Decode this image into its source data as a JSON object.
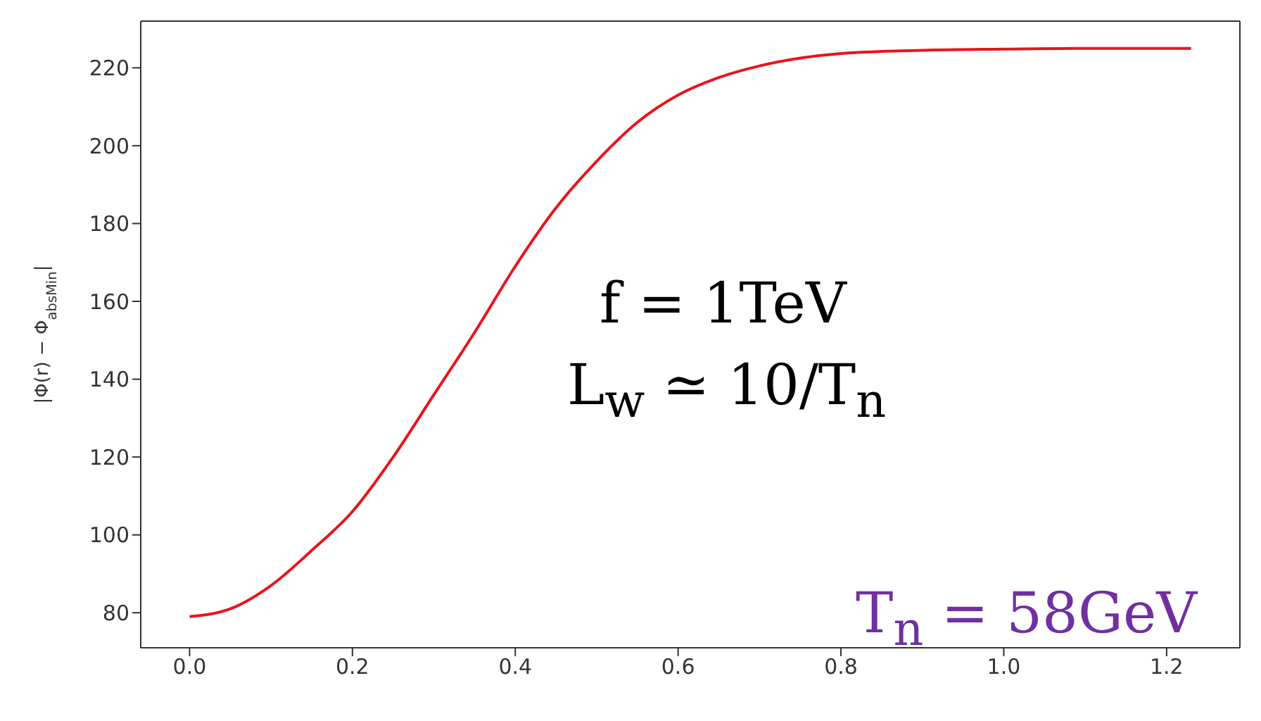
{
  "chart_data": {
    "type": "line",
    "ylabel": "|Φ(r) − Φ$_{absMin}$|",
    "x": [
      0,
      0.05,
      0.1,
      0.15,
      0.2,
      0.25,
      0.3,
      0.35,
      0.4,
      0.45,
      0.5,
      0.55,
      0.6,
      0.65,
      0.7,
      0.75,
      0.8,
      0.9,
      1.0,
      1.1,
      1.23
    ],
    "series": [
      {
        "color": "#e8141b",
        "values": [
          79,
          81,
          87,
          96,
          106,
          120,
          136,
          152,
          169,
          184,
          196,
          206,
          213,
          217.5,
          220.5,
          222.5,
          223.7,
          224.5,
          224.8,
          225,
          225
        ]
      }
    ],
    "xlim": [
      -0.06,
      1.29
    ],
    "xticks": [
      {
        "value": 0,
        "label": "0.0"
      },
      0.2,
      0.4,
      0.6,
      0.8,
      {
        "value": 1,
        "label": "1.0"
      },
      1.2
    ],
    "ylim": [
      71,
      232
    ],
    "yticks": [
      80,
      100,
      120,
      140,
      160,
      180,
      200,
      220
    ],
    "grid": false,
    "legend": false,
    "marker": "none",
    "line_style": "solid",
    "annotations": [
      "f = 1TeV",
      "L$_{w}$ ≃ 10/T$_{n}$",
      "T$_{n}$ = 58GeV"
    ]
  }
}
